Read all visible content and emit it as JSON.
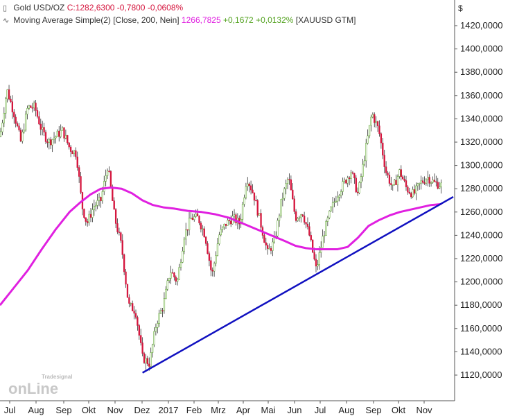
{
  "legend": {
    "row1": {
      "icon": "candlestick-icon",
      "name": "Gold USD/OZ",
      "close": "C:1282,6300",
      "change": "-0,7800",
      "change_pct": "-0,0608%"
    },
    "row2": {
      "icon": "line-icon",
      "name": "Moving Average Simple(2) [Close, 200, Nein]",
      "value": "1266,7825",
      "change": "+0,1672",
      "change_pct": "+0,0132%",
      "symbol": "[XAUUSD GTM]"
    }
  },
  "y_unit": "$",
  "watermark": {
    "top": "Tradesignal",
    "main": "onLine"
  },
  "colors": {
    "price_up": "#55a322",
    "price_down": "#d4143c",
    "candle": "#333333",
    "sma": "#e020e0",
    "trendline": "#1010c0",
    "axis": "#555555"
  },
  "chart_data": {
    "type": "line",
    "title": "Gold USD/OZ",
    "xlabel": "",
    "ylabel": "$",
    "x_tick_labels": [
      "Jul",
      "Aug",
      "Sep",
      "Okt",
      "Nov",
      "Dez",
      "2017",
      "Feb",
      "Mrz",
      "Apr",
      "Mai",
      "Jun",
      "Jul",
      "Aug",
      "Sep",
      "Okt",
      "Nov"
    ],
    "y_ticks": [
      1120,
      1140,
      1160,
      1180,
      1200,
      1220,
      1240,
      1260,
      1280,
      1300,
      1320,
      1340,
      1360,
      1380,
      1400,
      1420
    ],
    "y_tick_labels": [
      "1120,0000",
      "1140,0000",
      "1160,0000",
      "1180,0000",
      "1200,0000",
      "1220,0000",
      "1240,0000",
      "1260,0000",
      "1280,0000",
      "1300,0000",
      "1320,0000",
      "1340,0000",
      "1360,0000",
      "1380,0000",
      "1400,0000",
      "1420,0000"
    ],
    "ylim": [
      1100,
      1440
    ],
    "xlim": [
      0,
      650
    ],
    "grid": false,
    "series": [
      {
        "name": "Gold USD/OZ",
        "style": "candlestick",
        "x": [
          0,
          10,
          20,
          30,
          40,
          50,
          60,
          70,
          80,
          90,
          100,
          110,
          118,
          125,
          135,
          145,
          155,
          165,
          175,
          185,
          195,
          205,
          215,
          225,
          235,
          245,
          255,
          265,
          275,
          285,
          295,
          305,
          315,
          325,
          335,
          345,
          355,
          365,
          375,
          385,
          395,
          405,
          415,
          425,
          435,
          445,
          455,
          465,
          475,
          485,
          495,
          505,
          515,
          525,
          535,
          545,
          555,
          565,
          575,
          585,
          595,
          605,
          615,
          625,
          635
        ],
        "values": [
          1325,
          1365,
          1345,
          1320,
          1350,
          1350,
          1330,
          1320,
          1325,
          1330,
          1315,
          1310,
          1265,
          1250,
          1265,
          1270,
          1300,
          1255,
          1230,
          1180,
          1175,
          1135,
          1130,
          1165,
          1180,
          1210,
          1200,
          1240,
          1255,
          1255,
          1240,
          1205,
          1240,
          1250,
          1255,
          1250,
          1290,
          1275,
          1250,
          1225,
          1235,
          1270,
          1290,
          1255,
          1260,
          1240,
          1210,
          1240,
          1260,
          1275,
          1285,
          1295,
          1275,
          1310,
          1345,
          1330,
          1295,
          1280,
          1295,
          1280,
          1275,
          1285,
          1290,
          1285,
          1283
        ]
      },
      {
        "name": "Moving Average Simple(2) [Close, 200, Nein]",
        "style": "line",
        "x": [
          0,
          20,
          40,
          60,
          80,
          100,
          115,
          130,
          145,
          160,
          175,
          190,
          205,
          220,
          235,
          250,
          270,
          290,
          310,
          330,
          350,
          370,
          390,
          410,
          425,
          440,
          455,
          470,
          485,
          500,
          515,
          530,
          545,
          560,
          575,
          590,
          605,
          620,
          635
        ],
        "values": [
          1180,
          1195,
          1210,
          1228,
          1245,
          1260,
          1268,
          1275,
          1280,
          1281,
          1280,
          1276,
          1270,
          1266,
          1264,
          1263,
          1261,
          1260,
          1258,
          1255,
          1250,
          1245,
          1240,
          1235,
          1231,
          1229,
          1228,
          1228,
          1228,
          1230,
          1238,
          1248,
          1253,
          1257,
          1260,
          1262,
          1264,
          1266,
          1266.8
        ]
      },
      {
        "name": "",
        "style": "trendline",
        "x": [
          205,
          652
        ],
        "values": [
          1122,
          1273
        ]
      }
    ]
  }
}
